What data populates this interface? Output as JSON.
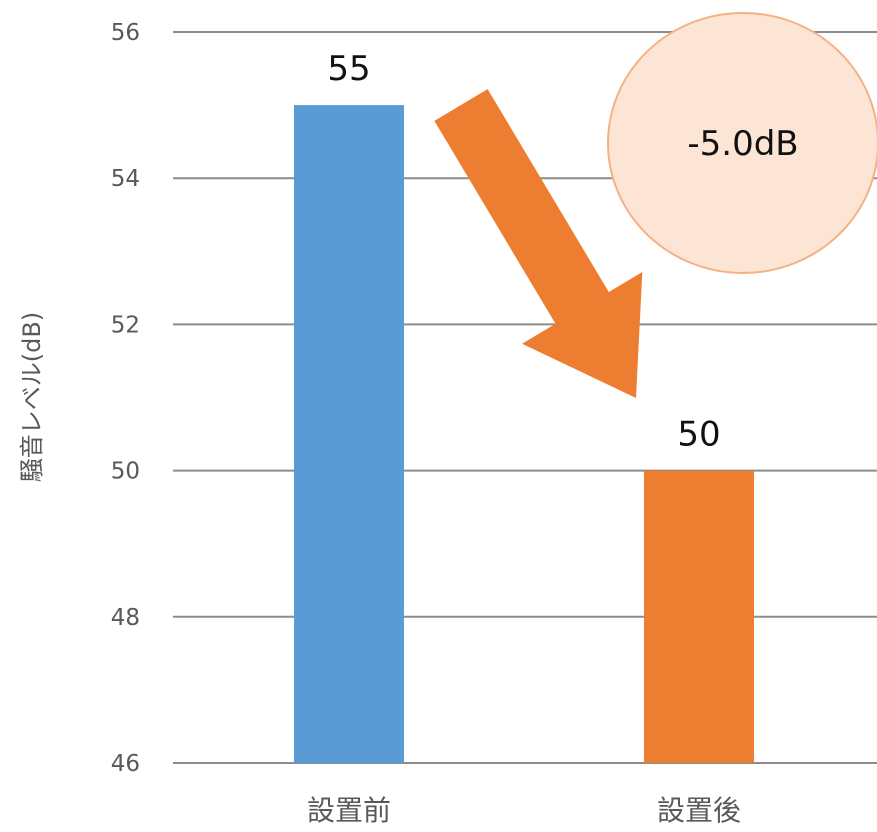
{
  "chart_data": {
    "type": "bar",
    "categories": [
      "設置前",
      "設置後"
    ],
    "values": [
      55,
      50
    ],
    "data_labels": [
      "55",
      "50"
    ],
    "bar_colors": [
      "#5b9bd5",
      "#ed7d31"
    ],
    "ylabel": "騒音レベル(dB)",
    "ylim": [
      46,
      56
    ],
    "yticks": [
      46,
      48,
      50,
      52,
      54,
      56
    ],
    "grid": true,
    "legend": "none",
    "annotation": {
      "text": "-5.0dB",
      "fill_color": "#fde5d6",
      "stroke_color": "#f4b183",
      "arrow_color": "#ed7d31"
    }
  }
}
